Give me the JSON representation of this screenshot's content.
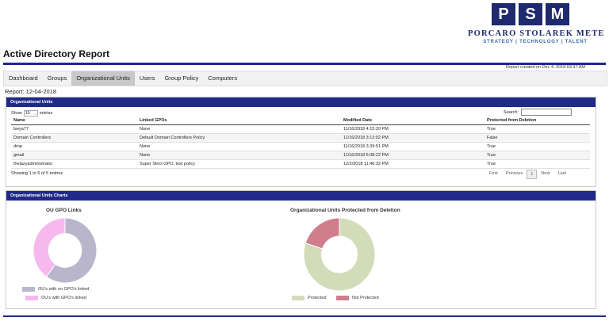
{
  "logo": {
    "letters": [
      "P",
      "S",
      "M"
    ],
    "name": "PORCARO STOLAREK METE",
    "tagline": "STRATEGY | TECHNOLOGY | TALENT"
  },
  "page_title": "Active Directory Report",
  "report_created": "Report created on Dec 4, 2018 03:37 AM",
  "tabs": [
    {
      "label": "Dashboard"
    },
    {
      "label": "Groups"
    },
    {
      "label": "Organizational Units",
      "active": true
    },
    {
      "label": "Users"
    },
    {
      "label": "Group Policy"
    },
    {
      "label": "Computers"
    }
  ],
  "report_date": "Report: 12-04-2018",
  "ou_panel": {
    "title": "Organizational Units",
    "show_label": "Show",
    "entries_value": "15",
    "entries_label": "entries",
    "search_label": "Search:",
    "search_value": "",
    "columns": [
      "Name",
      "Linked GPOs",
      "Modified Date",
      "Protected from Deletion"
    ],
    "rows": [
      [
        "bwya77",
        "None",
        "11/16/2018 4:15:20 PM",
        "True"
      ],
      [
        "Domain Controllers",
        "Default Domain Controllers Policy",
        "11/16/2018 3:13:02 PM",
        "False"
      ],
      [
        "drop",
        "None",
        "11/16/2018 3:39:51 PM",
        "True"
      ],
      [
        "gmail",
        "None",
        "11/16/2018 5:08:22 PM",
        "True"
      ],
      [
        "thelazyadministrator",
        "Super Strict GPO, test policy",
        "12/2/2018 11:46:32 PM",
        "True"
      ]
    ],
    "showing": "Showing 1 to 5 of 5 entries",
    "pager": {
      "first": "First",
      "previous": "Previous",
      "current": "1",
      "next": "Next",
      "last": "Last"
    }
  },
  "charts_panel": {
    "title": "Organizational Units Charts"
  },
  "chart_data": [
    {
      "type": "pie",
      "title": "OU GPO Links",
      "labels": [
        "OU's with no GPO's linked",
        "OU's with GPO's linked"
      ],
      "values": [
        3,
        2
      ],
      "colors": [
        "#b9b6cc",
        "#f7b8ee"
      ],
      "donut": true,
      "legend": "bottom"
    },
    {
      "type": "pie",
      "title": "Organizational Units Protected from Deletion",
      "labels": [
        "Protected",
        "Not Protected"
      ],
      "values": [
        4,
        1
      ],
      "colors": [
        "#d3dcb8",
        "#d07e8c"
      ],
      "donut": true,
      "legend": "bottom"
    }
  ]
}
